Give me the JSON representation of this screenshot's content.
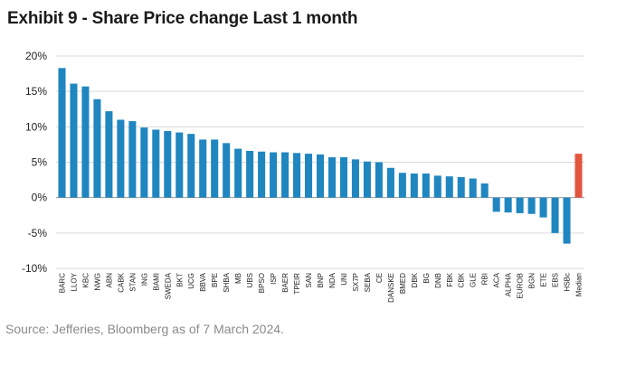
{
  "title": "Exhibit 9 - Share Price change Last 1 month",
  "source": "Source: Jefferies, Bloomberg as of 7 March 2024.",
  "colors": {
    "bar": "#1f86c0",
    "median": "#e2553f",
    "gridline": "#d9d9d9",
    "axis": "#9a9a9a"
  },
  "chart_data": {
    "type": "bar",
    "categories": [
      "BARC",
      "LLOY",
      "KBC",
      "NWG",
      "ABN",
      "CABK",
      "STAN",
      "ING",
      "BAMI",
      "SWEDA",
      "BKT",
      "UCG",
      "BBVA",
      "BPE",
      "SHBA",
      "MB",
      "UBS",
      "BPSO",
      "ISP",
      "BAER",
      "TPEIR",
      "SAN",
      "BNP",
      "NDA",
      "UNI",
      "SX7P",
      "SEBA",
      "CE",
      "DANSKE",
      "BMED",
      "DBK",
      "BG",
      "DNB",
      "FBK",
      "CBK",
      "GLE",
      "RBI",
      "ACA",
      "ALPHA",
      "EUROB",
      "BGN",
      "ETE",
      "EBS",
      "HSBc",
      "Median"
    ],
    "values": [
      18.3,
      16.1,
      15.7,
      13.9,
      12.2,
      11.0,
      10.8,
      9.9,
      9.6,
      9.4,
      9.2,
      9.0,
      8.2,
      8.2,
      7.7,
      6.9,
      6.6,
      6.5,
      6.4,
      6.4,
      6.3,
      6.2,
      6.1,
      5.7,
      5.7,
      5.4,
      5.1,
      5.0,
      4.2,
      3.5,
      3.4,
      3.4,
      3.1,
      3.0,
      2.9,
      2.7,
      2.0,
      -2.0,
      -2.1,
      -2.2,
      -2.3,
      -2.8,
      -5.0,
      -6.5,
      6.2
    ],
    "highlight": "Median",
    "yticks": [
      "20%",
      "15%",
      "10%",
      "5%",
      "0%",
      "-5%",
      "-10%"
    ],
    "ytick_values": [
      20,
      15,
      10,
      5,
      0,
      -5,
      -10
    ],
    "ylim": [
      -10,
      20
    ],
    "grid": true,
    "xlabel": "",
    "ylabel": ""
  }
}
